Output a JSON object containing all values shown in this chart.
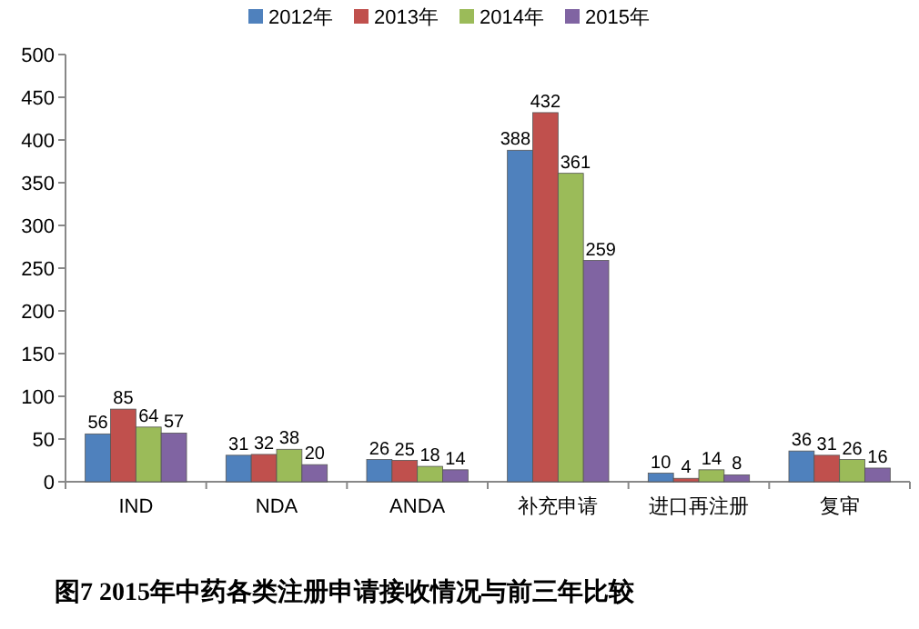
{
  "chart_data": {
    "type": "bar",
    "title": "图7  2015年中药各类注册申请接收情况与前三年比较",
    "categories": [
      "IND",
      "NDA",
      "ANDA",
      "补充申请",
      "进口再注册",
      "复审"
    ],
    "series": [
      {
        "name": "2012年",
        "color": "#4f81bd",
        "values": [
          56,
          31,
          26,
          388,
          10,
          36
        ]
      },
      {
        "name": "2013年",
        "color": "#c0504d",
        "values": [
          85,
          32,
          25,
          432,
          4,
          31
        ]
      },
      {
        "name": "2014年",
        "color": "#9bbb59",
        "values": [
          64,
          38,
          18,
          361,
          14,
          26
        ]
      },
      {
        "name": "2015年",
        "color": "#8064a2",
        "values": [
          57,
          20,
          14,
          259,
          8,
          16
        ]
      }
    ],
    "ylim": [
      0,
      500
    ],
    "yticks": [
      0,
      50,
      100,
      150,
      200,
      250,
      300,
      350,
      400,
      450,
      500
    ],
    "data_labels": true,
    "legend": "top",
    "grid": false
  }
}
